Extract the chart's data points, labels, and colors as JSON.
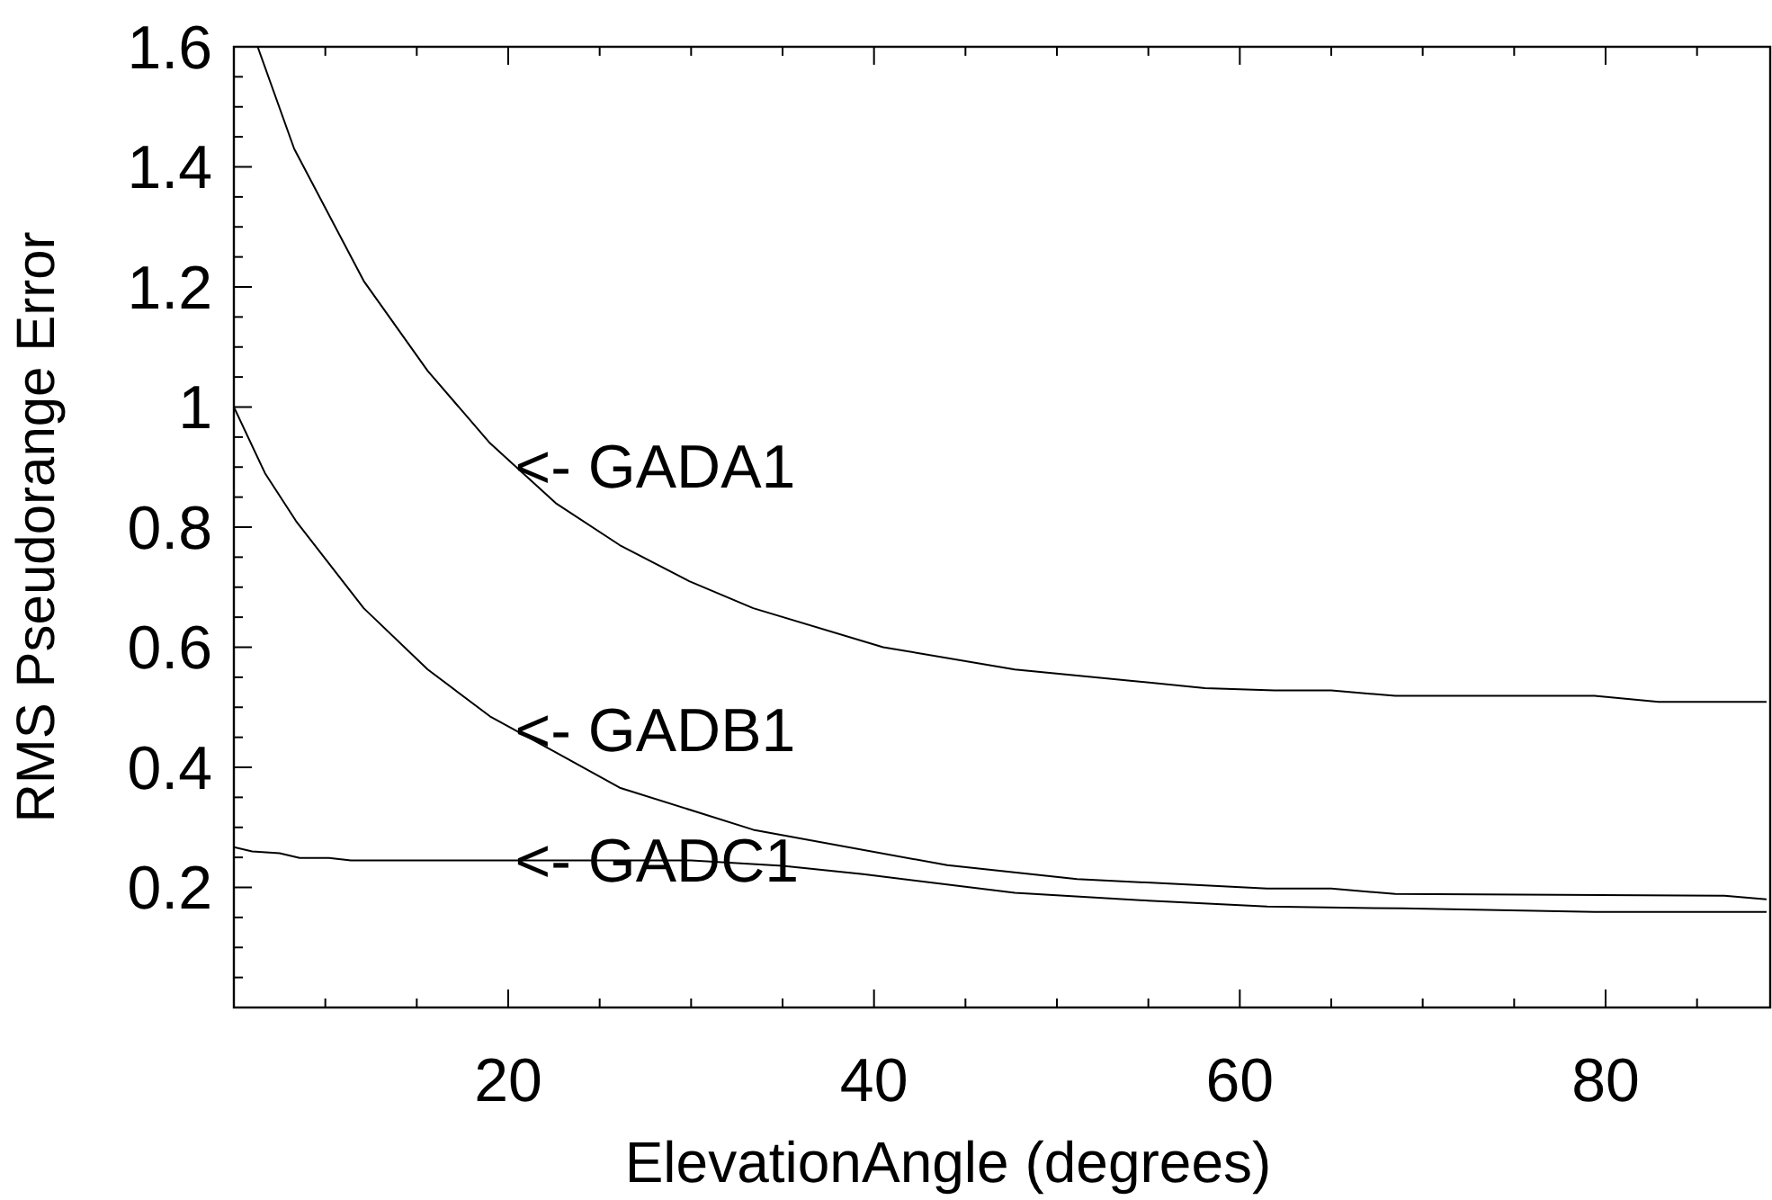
{
  "chart_data": {
    "type": "line",
    "xlabel": "ElevationAngle (degrees)",
    "ylabel": "RMS Pseudorange Error",
    "xlim": [
      5,
      89
    ],
    "ylim": [
      0,
      1.6
    ],
    "xticks": [
      {
        "value": 10,
        "label": null
      },
      {
        "value": 15,
        "label": null
      },
      20,
      {
        "value": 25,
        "label": null
      },
      {
        "value": 30,
        "label": null
      },
      {
        "value": 35,
        "label": null
      },
      40,
      {
        "value": 45,
        "label": null
      },
      {
        "value": 50,
        "label": null
      },
      {
        "value": 55,
        "label": null
      },
      60,
      {
        "value": 65,
        "label": null
      },
      {
        "value": 70,
        "label": null
      },
      {
        "value": 75,
        "label": null
      },
      80,
      {
        "value": 85,
        "label": null
      }
    ],
    "yticks": [
      {
        "value": 0.05,
        "label": null
      },
      {
        "value": 0.1,
        "label": null
      },
      {
        "value": 0.15,
        "label": null
      },
      0.2,
      {
        "value": 0.25,
        "label": null
      },
      {
        "value": 0.3,
        "label": null
      },
      {
        "value": 0.35,
        "label": null
      },
      0.4,
      {
        "value": 0.45,
        "label": null
      },
      {
        "value": 0.5,
        "label": null
      },
      {
        "value": 0.55,
        "label": null
      },
      0.6,
      {
        "value": 0.65,
        "label": null
      },
      {
        "value": 0.7,
        "label": null
      },
      {
        "value": 0.75,
        "label": null
      },
      0.8,
      {
        "value": 0.85,
        "label": null
      },
      {
        "value": 0.9,
        "label": null
      },
      {
        "value": 0.95,
        "label": null
      },
      1,
      {
        "value": 1.05,
        "label": null
      },
      {
        "value": 1.1,
        "label": null
      },
      {
        "value": 1.15,
        "label": null
      },
      1.2,
      {
        "value": 1.25,
        "label": null
      },
      {
        "value": 1.3,
        "label": null
      },
      {
        "value": 1.35,
        "label": null
      },
      1.4,
      {
        "value": 1.45,
        "label": null
      },
      {
        "value": 1.5,
        "label": null
      },
      {
        "value": 1.55,
        "label": null
      },
      1.6
    ],
    "grid": false,
    "marker": "none",
    "line_style": "solid",
    "series": [
      {
        "color": "#000000",
        "x": [
          6.3,
          8.3,
          12.1,
          15.6,
          19.0,
          22.6,
          26.1,
          29.9,
          33.4,
          40.5,
          47.7,
          58.1,
          61.9,
          65.0,
          68.5,
          79.4,
          82.9,
          88.8
        ],
        "values": [
          1.6,
          1.43,
          1.21,
          1.06,
          0.94,
          0.84,
          0.77,
          0.71,
          0.665,
          0.6,
          0.563,
          0.532,
          0.528,
          0.528,
          0.519,
          0.519,
          0.509,
          0.509
        ]
      },
      {
        "color": "#000000",
        "x": [
          5,
          6.7,
          8.4,
          12.1,
          15.6,
          19.0,
          22.6,
          26.1,
          33.4,
          44.0,
          51.1,
          61.5,
          65.0,
          68.5,
          86.5,
          88.8
        ],
        "values": [
          1.0,
          0.89,
          0.81,
          0.665,
          0.563,
          0.485,
          0.425,
          0.366,
          0.296,
          0.237,
          0.214,
          0.198,
          0.198,
          0.189,
          0.186,
          0.18
        ]
      },
      {
        "color": "#000000",
        "x": [
          5,
          6,
          7.5,
          8.6,
          10.2,
          11.4,
          30,
          35,
          39.4,
          47.7,
          55,
          61.5,
          68.9,
          79.4,
          88.8
        ],
        "values": [
          0.267,
          0.26,
          0.257,
          0.249,
          0.249,
          0.245,
          0.245,
          0.236,
          0.222,
          0.191,
          0.178,
          0.168,
          0.165,
          0.159,
          0.159
        ]
      }
    ],
    "annotations": [
      "<- GADA1",
      "<- GADB1",
      "<- GADC1"
    ]
  }
}
